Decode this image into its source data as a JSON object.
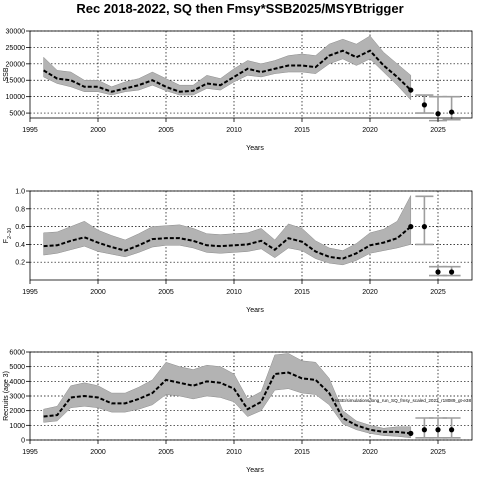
{
  "title": "Rec 2018-2022, SQ then Fmsy*SSB2025/MSYBtrigger",
  "colors": {
    "band": "#b3b3b3",
    "bandEdge": "#8c8c8c",
    "line": "#000000",
    "errorbar": "#9e9e9e",
    "point": "#000000",
    "grid": "#000000"
  },
  "chart_data": [
    {
      "type": "line",
      "name": "ssb",
      "ylabel": "SSB",
      "xlabel": "Years",
      "xlim": [
        1995,
        2027.5
      ],
      "ylim": [
        3500,
        30000
      ],
      "xticks": [
        1995,
        2000,
        2005,
        2010,
        2015,
        2020,
        2025
      ],
      "yticks": [
        5000,
        10000,
        15000,
        20000,
        25000,
        30000
      ],
      "grid": true,
      "series": [
        {
          "x": [
            1996,
            1997,
            1998,
            1999,
            2000,
            2001,
            2002,
            2003,
            2004,
            2005,
            2006,
            2007,
            2008,
            2009,
            2010,
            2011,
            2012,
            2013,
            2014,
            2015,
            2016,
            2017,
            2018,
            2019,
            2020,
            2021,
            2022,
            2023
          ],
          "median": [
            18000,
            15500,
            15000,
            13000,
            13000,
            11500,
            12500,
            13500,
            15000,
            13000,
            11500,
            11800,
            14000,
            13500,
            16000,
            18500,
            17500,
            18500,
            19500,
            19500,
            19000,
            22500,
            24000,
            22000,
            24000,
            19500,
            16000,
            12000
          ],
          "lower": [
            16000,
            14000,
            13000,
            11500,
            11500,
            10500,
            11500,
            12000,
            13500,
            11800,
            10500,
            10500,
            12500,
            12000,
            14500,
            16500,
            16000,
            17000,
            17500,
            17500,
            17000,
            20000,
            21500,
            19500,
            21500,
            17500,
            13500,
            9000
          ],
          "upper": [
            22000,
            18000,
            17500,
            15000,
            15000,
            13000,
            14500,
            15500,
            17500,
            15500,
            13500,
            13500,
            16500,
            15500,
            18500,
            21000,
            20000,
            21000,
            22500,
            23000,
            22500,
            26000,
            27500,
            26000,
            28500,
            23500,
            20000,
            16500
          ]
        }
      ],
      "points": [
        {
          "x": 2024,
          "y": 7500,
          "lo": 5000,
          "hi": 10500
        },
        {
          "x": 2025,
          "y": 4800,
          "lo": 2700,
          "hi": 10000
        },
        {
          "x": 2026,
          "y": 5300,
          "lo": 3000,
          "hi": 10000
        }
      ],
      "annotation": ""
    },
    {
      "type": "line",
      "name": "f",
      "ylabel": "F",
      "ylabel_sub": "2–10",
      "xlabel": "Years",
      "xlim": [
        1995,
        2027.5
      ],
      "ylim": [
        0.0,
        1.0
      ],
      "xticks": [
        1995,
        2000,
        2005,
        2010,
        2015,
        2020,
        2025
      ],
      "yticks": [
        0.2,
        0.4,
        0.6,
        0.8,
        1.0
      ],
      "ytick_labels": [
        "0.2",
        "0.4",
        "0.6",
        "0.8",
        "1.0"
      ],
      "grid": true,
      "series": [
        {
          "x": [
            1996,
            1997,
            1998,
            1999,
            2000,
            2001,
            2002,
            2003,
            2004,
            2005,
            2006,
            2007,
            2008,
            2009,
            2010,
            2011,
            2012,
            2013,
            2014,
            2015,
            2016,
            2017,
            2018,
            2019,
            2020,
            2021,
            2022,
            2023
          ],
          "median": [
            0.38,
            0.39,
            0.44,
            0.48,
            0.42,
            0.37,
            0.33,
            0.39,
            0.46,
            0.47,
            0.47,
            0.44,
            0.39,
            0.38,
            0.39,
            0.4,
            0.44,
            0.34,
            0.47,
            0.43,
            0.32,
            0.26,
            0.24,
            0.3,
            0.39,
            0.42,
            0.47,
            0.6
          ],
          "lower": [
            0.28,
            0.3,
            0.34,
            0.38,
            0.32,
            0.29,
            0.26,
            0.31,
            0.37,
            0.39,
            0.39,
            0.36,
            0.31,
            0.3,
            0.31,
            0.32,
            0.35,
            0.25,
            0.36,
            0.33,
            0.24,
            0.19,
            0.17,
            0.22,
            0.3,
            0.33,
            0.36,
            0.4
          ],
          "upper": [
            0.53,
            0.54,
            0.6,
            0.66,
            0.56,
            0.5,
            0.45,
            0.52,
            0.6,
            0.61,
            0.62,
            0.58,
            0.52,
            0.51,
            0.52,
            0.53,
            0.58,
            0.45,
            0.63,
            0.58,
            0.44,
            0.36,
            0.33,
            0.41,
            0.53,
            0.57,
            0.66,
            0.95
          ]
        }
      ],
      "points": [
        {
          "x": 2024,
          "y": 0.6,
          "lo": 0.4,
          "hi": 0.94
        },
        {
          "x": 2025,
          "y": 0.09,
          "lo": 0.05,
          "hi": 0.15
        },
        {
          "x": 2026,
          "y": 0.09,
          "lo": 0.05,
          "hi": 0.15
        }
      ],
      "annotation": ""
    },
    {
      "type": "line",
      "name": "recruits",
      "ylabel": "Recruits (age 3)",
      "xlabel": "Years",
      "xlim": [
        1995,
        2027.5
      ],
      "ylim": [
        0,
        6000
      ],
      "xticks": [
        1995,
        2000,
        2005,
        2010,
        2015,
        2020,
        2025
      ],
      "yticks": [
        0,
        1000,
        2000,
        3000,
        4000,
        5000,
        6000
      ],
      "grid": true,
      "series": [
        {
          "x": [
            1996,
            1997,
            1998,
            1999,
            2000,
            2001,
            2002,
            2003,
            2004,
            2005,
            2006,
            2007,
            2008,
            2009,
            2010,
            2011,
            2012,
            2013,
            2014,
            2015,
            2016,
            2017,
            2018,
            2019,
            2020,
            2021,
            2022,
            2023
          ],
          "median": [
            1600,
            1700,
            2900,
            3000,
            2900,
            2500,
            2500,
            2800,
            3200,
            4100,
            3900,
            3700,
            4000,
            3900,
            3500,
            2100,
            2600,
            4500,
            4600,
            4200,
            4100,
            3200,
            1500,
            1000,
            700,
            550,
            550,
            450
          ],
          "lower": [
            1200,
            1300,
            2200,
            2300,
            2200,
            1900,
            1900,
            2100,
            2400,
            3100,
            3000,
            2800,
            3000,
            2900,
            2600,
            1600,
            2000,
            3400,
            3500,
            3200,
            3100,
            2400,
            1100,
            700,
            450,
            300,
            250,
            150
          ],
          "upper": [
            2100,
            2300,
            3700,
            3900,
            3700,
            3200,
            3200,
            3600,
            4100,
            5300,
            5000,
            4800,
            5100,
            5000,
            4500,
            2800,
            3300,
            5800,
            5900,
            5400,
            5300,
            4200,
            2000,
            1300,
            1000,
            800,
            900,
            900
          ]
        }
      ],
      "points": [
        {
          "x": 2024,
          "y": 700,
          "lo": 150,
          "hi": 1500
        },
        {
          "x": 2025,
          "y": 700,
          "lo": 150,
          "hi": 1500
        },
        {
          "x": 2026,
          "y": 700,
          "lo": 150,
          "hi": 1500
        }
      ],
      "annotation": "MSE/simulations/long_run_SQ_fmsy_scaled_2023_r18089_gt-e38"
    }
  ]
}
